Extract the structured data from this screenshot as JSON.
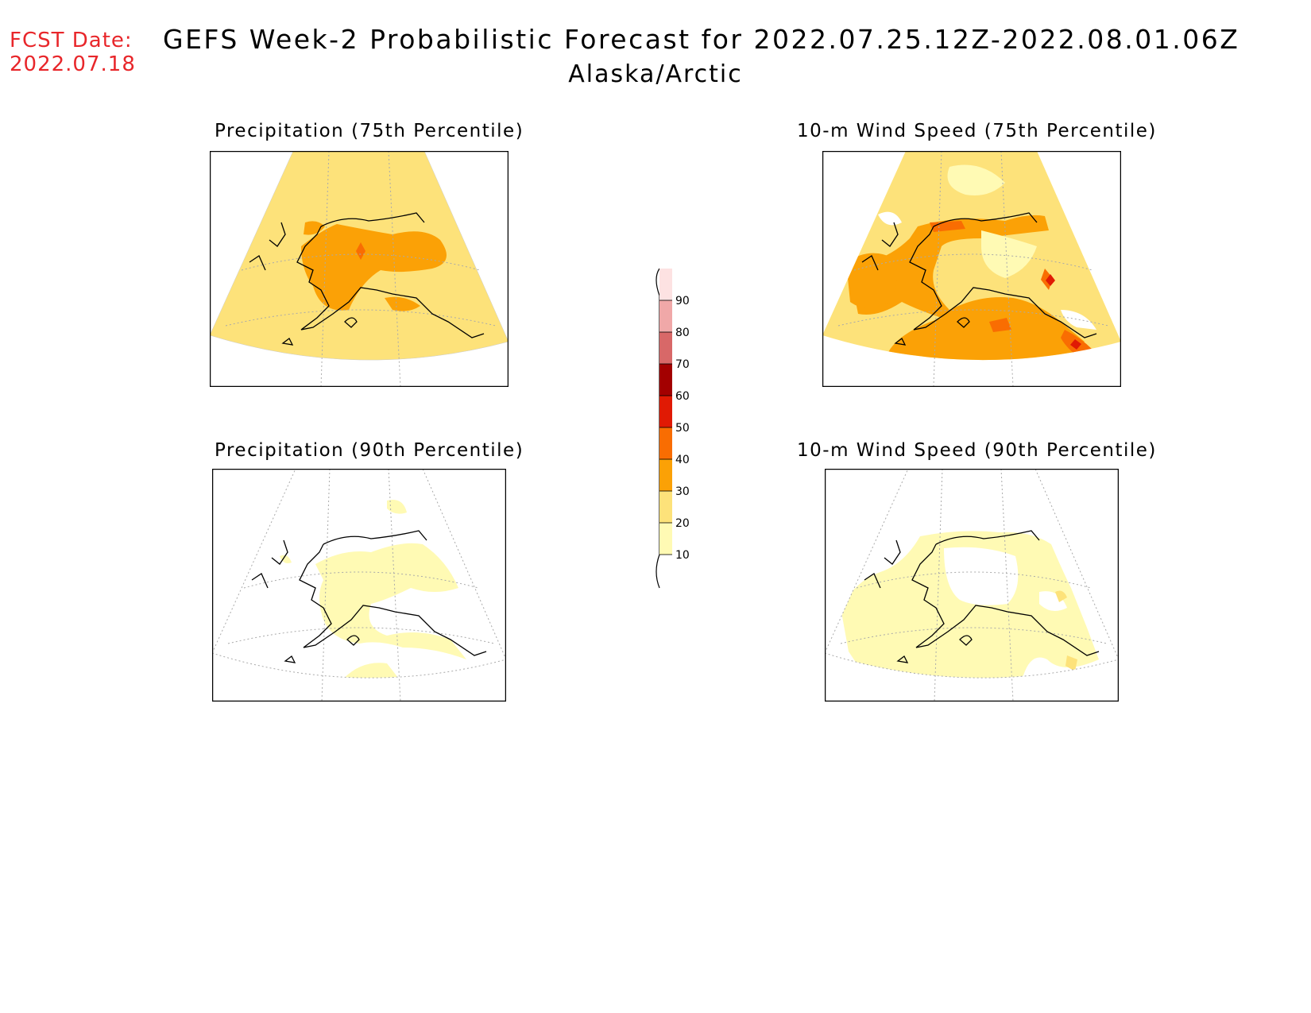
{
  "header": {
    "fcst_label": "FCST Date:",
    "fcst_date": "2022.07.18",
    "title": "GEFS Week-2 Probabilistic Forecast for 2022.07.25.12Z-2022.08.01.06Z",
    "region": "Alaska/Arctic"
  },
  "panels": [
    {
      "title": "Precipitation (75th Percentile)"
    },
    {
      "title": "10-m Wind Speed (75th Percentile)"
    },
    {
      "title": "Precipitation (90th Percentile)"
    },
    {
      "title": "10-m Wind Speed (90th Percentile)"
    }
  ],
  "legend": {
    "levels": [
      "10",
      "20",
      "30",
      "40",
      "50",
      "60",
      "70",
      "80",
      "90"
    ],
    "colors": [
      "#fffab4",
      "#fde27a",
      "#fba106",
      "#f96d02",
      "#e01a04",
      "#a30000",
      "#d86868",
      "#f0a8a8",
      "#fde2e2"
    ]
  }
}
